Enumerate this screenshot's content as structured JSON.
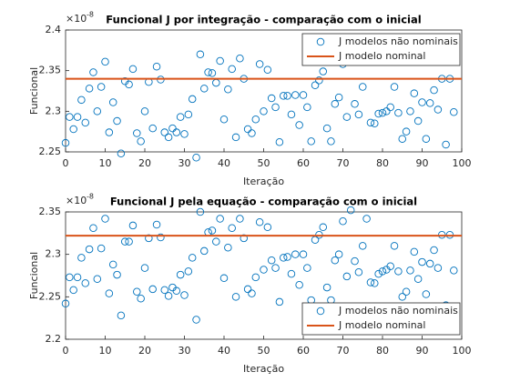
{
  "chart_data": [
    {
      "type": "scatter",
      "title": "Funcional J por integração - comparação com o inicial",
      "xlabel": "Iteração",
      "ylabel": "Funcional",
      "y_exponent": {
        "base": "×10",
        "power": "-8"
      },
      "xlim": [
        0,
        100
      ],
      "xticks": [
        0,
        10,
        20,
        30,
        40,
        50,
        60,
        70,
        80,
        90,
        100
      ],
      "ylim": [
        2.25,
        2.4
      ],
      "yticks": [
        2.25,
        2.3,
        2.35,
        2.4
      ],
      "grid": false,
      "legend": "northeast",
      "series": [
        {
          "name": "J modelos não nominais",
          "color": "#0072bd",
          "marker": "circle",
          "x": [
            0,
            1,
            2,
            3,
            4,
            5,
            6,
            7,
            8,
            9,
            10,
            11,
            12,
            13,
            14,
            15,
            16,
            17,
            18,
            19,
            20,
            21,
            22,
            23,
            24,
            25,
            26,
            27,
            28,
            29,
            30,
            31,
            32,
            33,
            34,
            35,
            36,
            37,
            38,
            39,
            40,
            41,
            42,
            43,
            44,
            45,
            46,
            47,
            48,
            49,
            50,
            51,
            52,
            53,
            54,
            55,
            56,
            57,
            58,
            59,
            60,
            61,
            62,
            63,
            64,
            65,
            66,
            67,
            68,
            69,
            70,
            71,
            72,
            73,
            74,
            75,
            76,
            77,
            78,
            79,
            80,
            81,
            82,
            83,
            84,
            85,
            86,
            87,
            88,
            89,
            90,
            91,
            92,
            93,
            94,
            95,
            96,
            97,
            98
          ],
          "values": [
            2.261,
            2.293,
            2.278,
            2.293,
            2.314,
            2.286,
            2.328,
            2.348,
            2.3,
            2.33,
            2.361,
            2.274,
            2.311,
            2.288,
            2.248,
            2.337,
            2.333,
            2.352,
            2.273,
            2.263,
            2.3,
            2.336,
            2.279,
            2.355,
            2.339,
            2.274,
            2.268,
            2.279,
            2.274,
            2.293,
            2.272,
            2.296,
            2.315,
            2.243,
            2.37,
            2.328,
            2.348,
            2.347,
            2.335,
            2.362,
            2.29,
            2.327,
            2.352,
            2.268,
            2.365,
            2.34,
            2.278,
            2.273,
            2.29,
            2.358,
            2.3,
            2.351,
            2.316,
            2.305,
            2.262,
            2.319,
            2.319,
            2.296,
            2.32,
            2.283,
            2.32,
            2.305,
            2.263,
            2.332,
            2.338,
            2.349,
            2.279,
            2.263,
            2.309,
            2.317,
            2.358,
            2.293,
            2.37,
            2.309,
            2.296,
            2.33,
            2.362,
            2.286,
            2.285,
            2.297,
            2.298,
            2.3,
            2.305,
            2.33,
            2.298,
            2.266,
            2.275,
            2.3,
            2.322,
            2.288,
            2.311,
            2.266,
            2.31,
            2.326,
            2.302,
            2.34,
            2.259,
            2.34,
            2.299
          ]
        },
        {
          "name": "J modelo nominal",
          "color": "#d95319",
          "marker": "line",
          "x": [
            0,
            100
          ],
          "values": [
            2.34,
            2.34
          ]
        }
      ]
    },
    {
      "type": "scatter",
      "title": "Funcional J pela equação - comparação com o inicial",
      "xlabel": "Iteração",
      "ylabel": "Funcional",
      "y_exponent": {
        "base": "×10",
        "power": "-8"
      },
      "xlim": [
        0,
        100
      ],
      "xticks": [
        0,
        10,
        20,
        30,
        40,
        50,
        60,
        70,
        80,
        90,
        100
      ],
      "ylim": [
        2.2,
        2.35
      ],
      "yticks": [
        2.2,
        2.25,
        2.3,
        2.35
      ],
      "grid": false,
      "legend": "southeast",
      "series": [
        {
          "name": "J modelos não nominais",
          "color": "#0072bd",
          "marker": "circle",
          "x": [
            0,
            1,
            2,
            3,
            4,
            5,
            6,
            7,
            8,
            9,
            10,
            11,
            12,
            13,
            14,
            15,
            16,
            17,
            18,
            19,
            20,
            21,
            22,
            23,
            24,
            25,
            26,
            27,
            28,
            29,
            30,
            31,
            32,
            33,
            34,
            35,
            36,
            37,
            38,
            39,
            40,
            41,
            42,
            43,
            44,
            45,
            46,
            47,
            48,
            49,
            50,
            51,
            52,
            53,
            54,
            55,
            56,
            57,
            58,
            59,
            60,
            61,
            62,
            63,
            64,
            65,
            66,
            67,
            68,
            69,
            70,
            71,
            72,
            73,
            74,
            75,
            76,
            77,
            78,
            79,
            80,
            81,
            82,
            83,
            84,
            85,
            86,
            87,
            88,
            89,
            90,
            91,
            92,
            93,
            94,
            95,
            96,
            97,
            98
          ],
          "values": [
            2.242,
            2.273,
            2.258,
            2.273,
            2.296,
            2.266,
            2.306,
            2.331,
            2.271,
            2.307,
            2.342,
            2.254,
            2.288,
            2.276,
            2.228,
            2.315,
            2.315,
            2.334,
            2.256,
            2.248,
            2.284,
            2.319,
            2.259,
            2.335,
            2.32,
            2.258,
            2.251,
            2.261,
            2.257,
            2.276,
            2.252,
            2.28,
            2.296,
            2.223,
            2.35,
            2.304,
            2.326,
            2.328,
            2.315,
            2.342,
            2.272,
            2.308,
            2.331,
            2.25,
            2.342,
            2.319,
            2.259,
            2.254,
            2.273,
            2.338,
            2.282,
            2.332,
            2.293,
            2.284,
            2.244,
            2.296,
            2.297,
            2.277,
            2.3,
            2.264,
            2.3,
            2.284,
            2.246,
            2.317,
            2.323,
            2.332,
            2.261,
            2.246,
            2.293,
            2.3,
            2.339,
            2.274,
            2.352,
            2.292,
            2.279,
            2.31,
            2.342,
            2.267,
            2.266,
            2.277,
            2.28,
            2.282,
            2.286,
            2.31,
            2.28,
            2.25,
            2.256,
            2.281,
            2.303,
            2.271,
            2.291,
            2.253,
            2.289,
            2.305,
            2.284,
            2.323,
            2.24,
            2.323,
            2.281
          ]
        },
        {
          "name": "J modelo nominal",
          "color": "#d95319",
          "marker": "line",
          "x": [
            0,
            100
          ],
          "values": [
            2.322,
            2.322
          ]
        }
      ]
    }
  ]
}
